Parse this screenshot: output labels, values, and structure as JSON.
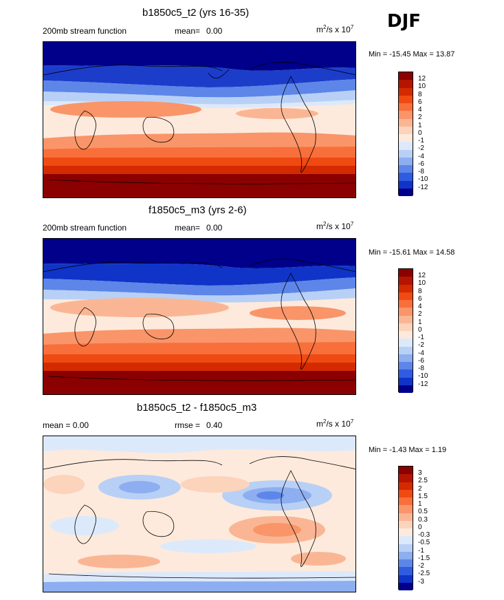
{
  "season": "DJF",
  "units_prefix": "m",
  "units_mid": "/s x 10",
  "units_exp_a": "2",
  "units_exp_b": "7",
  "panels": [
    {
      "title": "b1850c5_t2 (yrs 16-35)",
      "left_label": "200mb stream function",
      "stat_label": "mean=",
      "stat_value": "0.00",
      "minmax": "Min = -15.45 Max =  13.87",
      "ticks": [
        "12",
        "10",
        "8",
        "6",
        "4",
        "2",
        "1",
        "0",
        "-1",
        "-2",
        "-4",
        "-6",
        "-8",
        "-10",
        "-12"
      ]
    },
    {
      "title": "f1850c5_m3 (yrs 2-6)",
      "left_label": "200mb stream function",
      "stat_label": "mean=",
      "stat_value": "0.00",
      "minmax": "Min = -15.61 Max =  14.58",
      "ticks": [
        "12",
        "10",
        "8",
        "6",
        "4",
        "2",
        "1",
        "0",
        "-1",
        "-2",
        "-4",
        "-6",
        "-8",
        "-10",
        "-12"
      ]
    },
    {
      "title": "b1850c5_t2 - f1850c5_m3",
      "left_label": "mean =   0.00",
      "stat_label": "rmse =",
      "stat_value": "0.40",
      "minmax": "Min =  -1.43 Max =   1.19",
      "ticks": [
        "3",
        "2.5",
        "2",
        "1.5",
        "1",
        "0.5",
        "0.3",
        "0",
        "-0.3",
        "-0.5",
        "-1",
        "-1.5",
        "-2",
        "-2.5",
        "-3"
      ]
    }
  ],
  "colors": {
    "scale": [
      "#8b0000",
      "#b41500",
      "#d42a00",
      "#ee4a12",
      "#f86f3b",
      "#f99569",
      "#fab694",
      "#fcd3bb",
      "#fdeadc",
      "#dce9fb",
      "#b8d0f6",
      "#8daef0",
      "#5d86e8",
      "#2f5ce0",
      "#1034c8",
      "#00008b"
    ]
  }
}
